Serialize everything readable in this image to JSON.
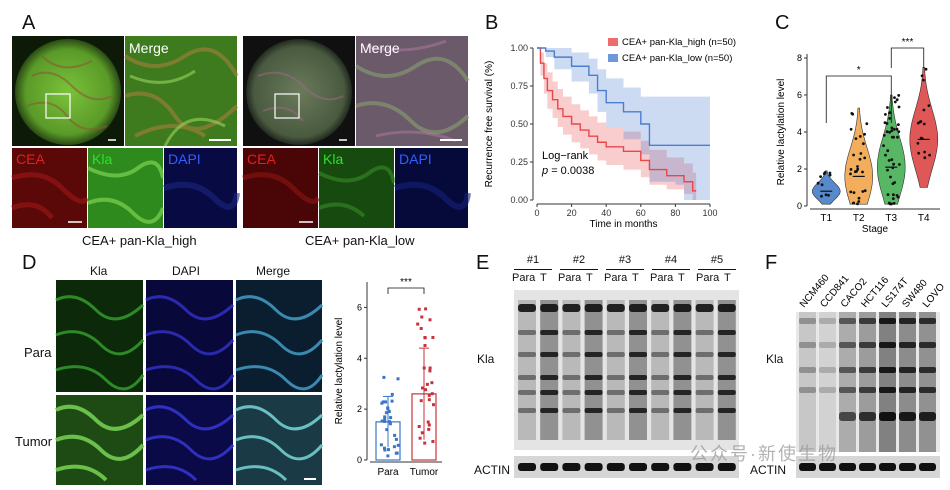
{
  "panels": {
    "A": {
      "label": "A",
      "groups": [
        {
          "caption": "CEA+ pan-Kla_high",
          "merge_label": "Merge",
          "channels": [
            "CEA",
            "Kla",
            "DAPI"
          ]
        },
        {
          "caption": "CEA+ pan-Kla_low",
          "merge_label": "Merge",
          "channels": [
            "CEA",
            "Kla",
            "DAPI"
          ]
        }
      ],
      "channel_colors": {
        "CEA": "#e02020",
        "Kla": "#30e030",
        "DAPI": "#3060ff"
      }
    },
    "B": {
      "label": "B",
      "logrank_label": "Log−rank",
      "p_label": "p",
      "p_value": "= 0.0038"
    },
    "C": {
      "label": "C",
      "sig_labels": [
        "*",
        "***"
      ]
    },
    "D": {
      "label": "D",
      "col_headers": [
        "Kla",
        "DAPI",
        "Merge"
      ],
      "row_headers": [
        "Para",
        "Tumor"
      ],
      "sig_label": "***"
    },
    "E": {
      "label": "E",
      "pairs": [
        "#1",
        "#2",
        "#3",
        "#4",
        "#5"
      ],
      "lane_labels": [
        "Para",
        "T"
      ],
      "row_label": "Kla",
      "actin_label": "ACTIN"
    },
    "F": {
      "label": "F",
      "cell_lines": [
        "NCM460",
        "CCD841",
        "CACO2",
        "HCT116",
        "LS174T",
        "SW480",
        "LOVO"
      ],
      "row_label": "Kla",
      "actin_label": "ACTIN"
    }
  },
  "watermark": "公众号·新使生物",
  "chart_data": [
    {
      "type": "line",
      "panel": "B",
      "xlabel": "Time in months",
      "ylabel": "Recurrence free survival (%)",
      "xlim": [
        0,
        100
      ],
      "ylim": [
        0,
        1
      ],
      "xticks": [
        0,
        20,
        40,
        60,
        80,
        100
      ],
      "yticks": [
        0.0,
        0.25,
        0.5,
        0.75,
        1.0
      ],
      "ytick_labels": [
        "0.00",
        "0.25",
        "0.50",
        "0.75",
        "1.00"
      ],
      "legend_position": "top-right",
      "series": [
        {
          "name": "CEA+ pan-Kla_high (n=50)",
          "color": "#e8474a",
          "x": [
            0,
            2,
            4,
            6,
            9,
            12,
            15,
            20,
            25,
            30,
            35,
            40,
            50,
            60,
            65,
            75,
            85,
            90,
            92
          ],
          "y": [
            1.0,
            0.9,
            0.8,
            0.72,
            0.66,
            0.6,
            0.55,
            0.5,
            0.46,
            0.42,
            0.38,
            0.35,
            0.32,
            0.26,
            0.2,
            0.16,
            0.12,
            0.06,
            0.06
          ],
          "ci_upper": [
            1.0,
            0.97,
            0.9,
            0.84,
            0.78,
            0.73,
            0.68,
            0.63,
            0.59,
            0.55,
            0.51,
            0.48,
            0.45,
            0.39,
            0.33,
            0.28,
            0.24,
            0.18,
            0.18
          ],
          "ci_lower": [
            1.0,
            0.82,
            0.7,
            0.6,
            0.54,
            0.48,
            0.43,
            0.38,
            0.34,
            0.3,
            0.26,
            0.23,
            0.2,
            0.15,
            0.1,
            0.07,
            0.04,
            0.0,
            0.0
          ]
        },
        {
          "name": "CEA+ pan-Kla_low (n=50)",
          "color": "#4a7ed0",
          "x": [
            0,
            5,
            10,
            20,
            30,
            35,
            40,
            50,
            60,
            65,
            75,
            80,
            85,
            100
          ],
          "y": [
            1.0,
            0.98,
            0.94,
            0.88,
            0.82,
            0.72,
            0.64,
            0.58,
            0.5,
            0.36,
            0.36,
            0.36,
            0.36,
            0.36
          ],
          "ci_upper": [
            1.0,
            1.0,
            1.0,
            0.97,
            0.93,
            0.86,
            0.8,
            0.74,
            0.68,
            0.68,
            0.68,
            0.68,
            0.68,
            0.68
          ],
          "ci_lower": [
            1.0,
            0.94,
            0.86,
            0.78,
            0.7,
            0.58,
            0.48,
            0.4,
            0.3,
            0.12,
            0.12,
            0.1,
            0.0,
            0.0
          ]
        }
      ]
    },
    {
      "type": "violin",
      "panel": "C",
      "xlabel": "Stage",
      "ylabel": "Relative lactylation level",
      "categories": [
        "T1",
        "T2",
        "T3",
        "T4"
      ],
      "ylim": [
        0,
        8
      ],
      "yticks": [
        0,
        2,
        4,
        6,
        8
      ],
      "colors": [
        "#3a76c4",
        "#f0a040",
        "#3aaa4a",
        "#d93a3a"
      ],
      "medians": [
        0.8,
        1.6,
        2.1,
        3.6
      ],
      "ranges": [
        [
          0.1,
          1.9
        ],
        [
          0.1,
          5.3
        ],
        [
          0.1,
          6.0
        ],
        [
          1.0,
          7.5
        ]
      ],
      "significance": [
        {
          "pair": [
            "T1",
            "T3"
          ],
          "label": "*"
        },
        {
          "pair": [
            "T3",
            "T4"
          ],
          "label": "***"
        }
      ]
    },
    {
      "type": "bar",
      "panel": "D",
      "ylabel": "Relative lactylation level",
      "categories": [
        "Para",
        "Tumor"
      ],
      "values": [
        1.5,
        2.6
      ],
      "sd": [
        1.0,
        1.8
      ],
      "ylim": [
        0,
        7
      ],
      "yticks": [
        0,
        2,
        4,
        6
      ],
      "colors": [
        "#3a76c4",
        "#c8323a"
      ],
      "significance": "***"
    }
  ]
}
